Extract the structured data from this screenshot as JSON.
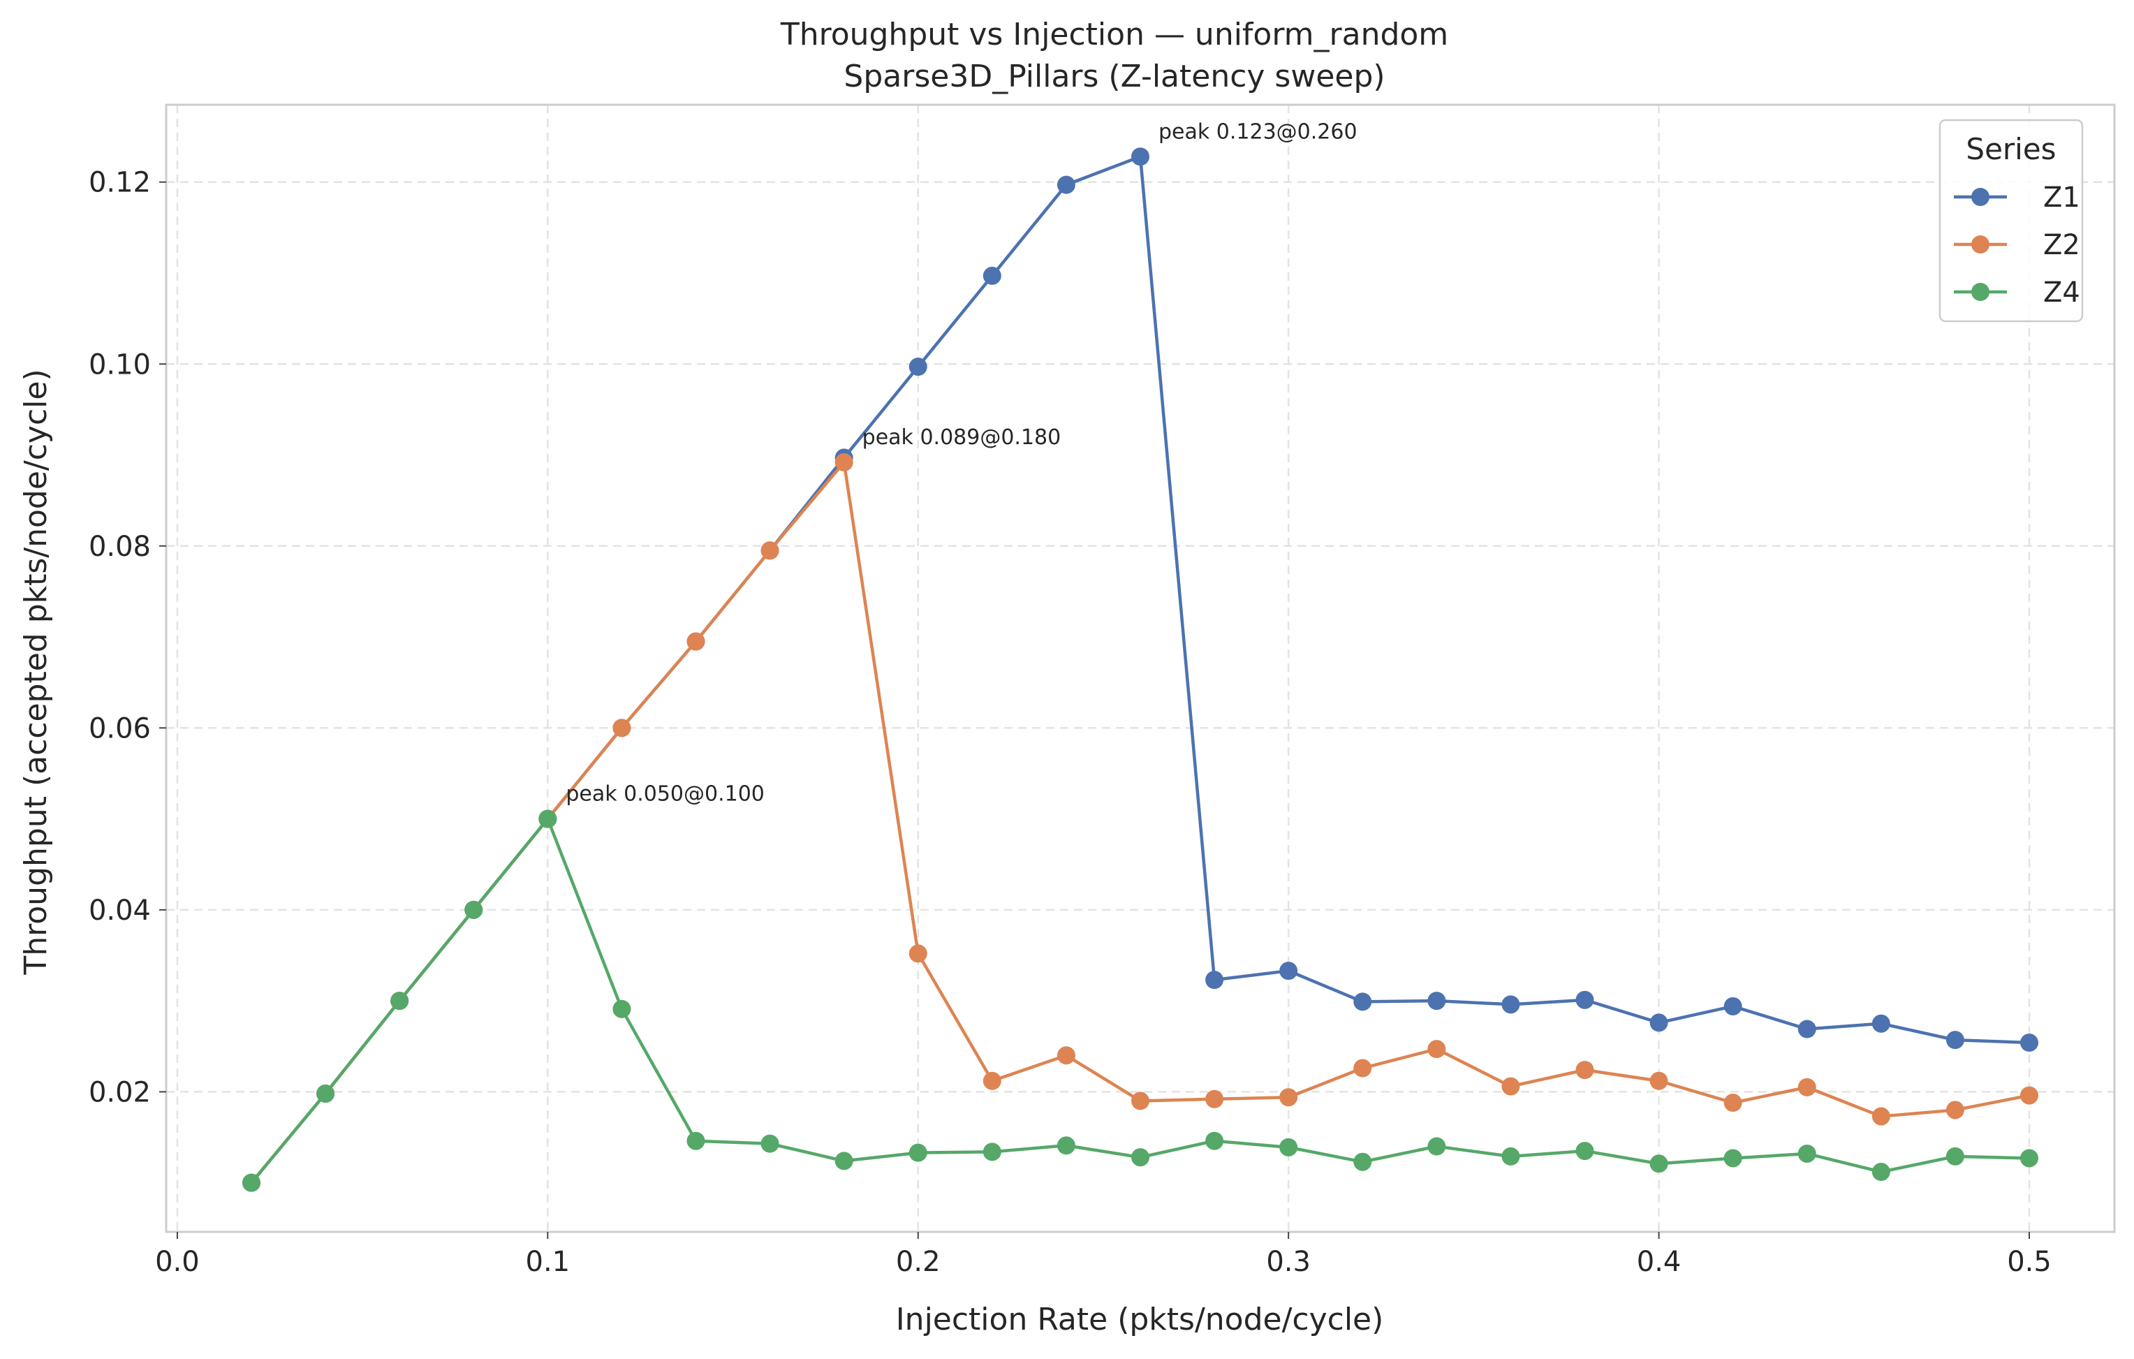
{
  "chart_data": {
    "type": "line",
    "title": "Throughput vs Injection — uniform_random",
    "subtitle": "Sparse3D_Pillars (Z-latency sweep)",
    "xlabel": "Injection Rate (pkts/node/cycle)",
    "ylabel": "Throughput (accepted pkts/node/cycle)",
    "xlim": [
      -0.003,
      0.523
    ],
    "ylim": [
      0.0046,
      0.1285
    ],
    "xticks": [
      0.0,
      0.1,
      0.2,
      0.3,
      0.4,
      0.5
    ],
    "xtick_labels": [
      "0.0",
      "0.1",
      "0.2",
      "0.3",
      "0.4",
      "0.5"
    ],
    "yticks": [
      0.02,
      0.04,
      0.06,
      0.08,
      0.1,
      0.12
    ],
    "ytick_labels": [
      "0.02",
      "0.04",
      "0.06",
      "0.08",
      "0.10",
      "0.12"
    ],
    "grid": true,
    "legend": {
      "title": "Series",
      "placement": "top-right"
    },
    "x": [
      0.02,
      0.04,
      0.06,
      0.08,
      0.1,
      0.12,
      0.14,
      0.16,
      0.18,
      0.2,
      0.22,
      0.24,
      0.26,
      0.28,
      0.3,
      0.32,
      0.34,
      0.36,
      0.38,
      0.4,
      0.42,
      0.44,
      0.46,
      0.48,
      0.5
    ],
    "series": [
      {
        "name": "Z1",
        "color": "#4c72b0",
        "values": [
          0.01,
          0.0198,
          0.03,
          0.04,
          0.05,
          0.06,
          0.0695,
          0.0795,
          0.0897,
          0.0997,
          0.1097,
          0.1197,
          0.1228,
          0.0323,
          0.0333,
          0.0299,
          0.03,
          0.0296,
          0.0301,
          0.0276,
          0.0294,
          0.0269,
          0.0275,
          0.0257,
          0.0254
        ]
      },
      {
        "name": "Z2",
        "color": "#dd8452",
        "values": [
          0.01,
          0.0198,
          0.03,
          0.04,
          0.05,
          0.06,
          0.0695,
          0.0795,
          0.0892,
          0.0352,
          0.0212,
          0.024,
          0.019,
          0.0192,
          0.0194,
          0.0226,
          0.0247,
          0.0206,
          0.0224,
          0.0212,
          0.0188,
          0.0205,
          0.0173,
          0.018,
          0.0196
        ]
      },
      {
        "name": "Z4",
        "color": "#55a868",
        "values": [
          0.01,
          0.0198,
          0.03,
          0.04,
          0.05,
          0.0291,
          0.0146,
          0.0143,
          0.0124,
          0.0133,
          0.0134,
          0.0141,
          0.0128,
          0.0146,
          0.0139,
          0.0123,
          0.014,
          0.0129,
          0.0135,
          0.0121,
          0.0127,
          0.0132,
          0.0112,
          0.0129,
          0.0127
        ]
      }
    ],
    "annotations": [
      {
        "text": "peak 0.123@0.260",
        "x": 0.26,
        "y": 0.1228
      },
      {
        "text": "peak 0.089@0.180",
        "x": 0.18,
        "y": 0.0892
      },
      {
        "text": "peak 0.050@0.100",
        "x": 0.1,
        "y": 0.05
      }
    ]
  }
}
